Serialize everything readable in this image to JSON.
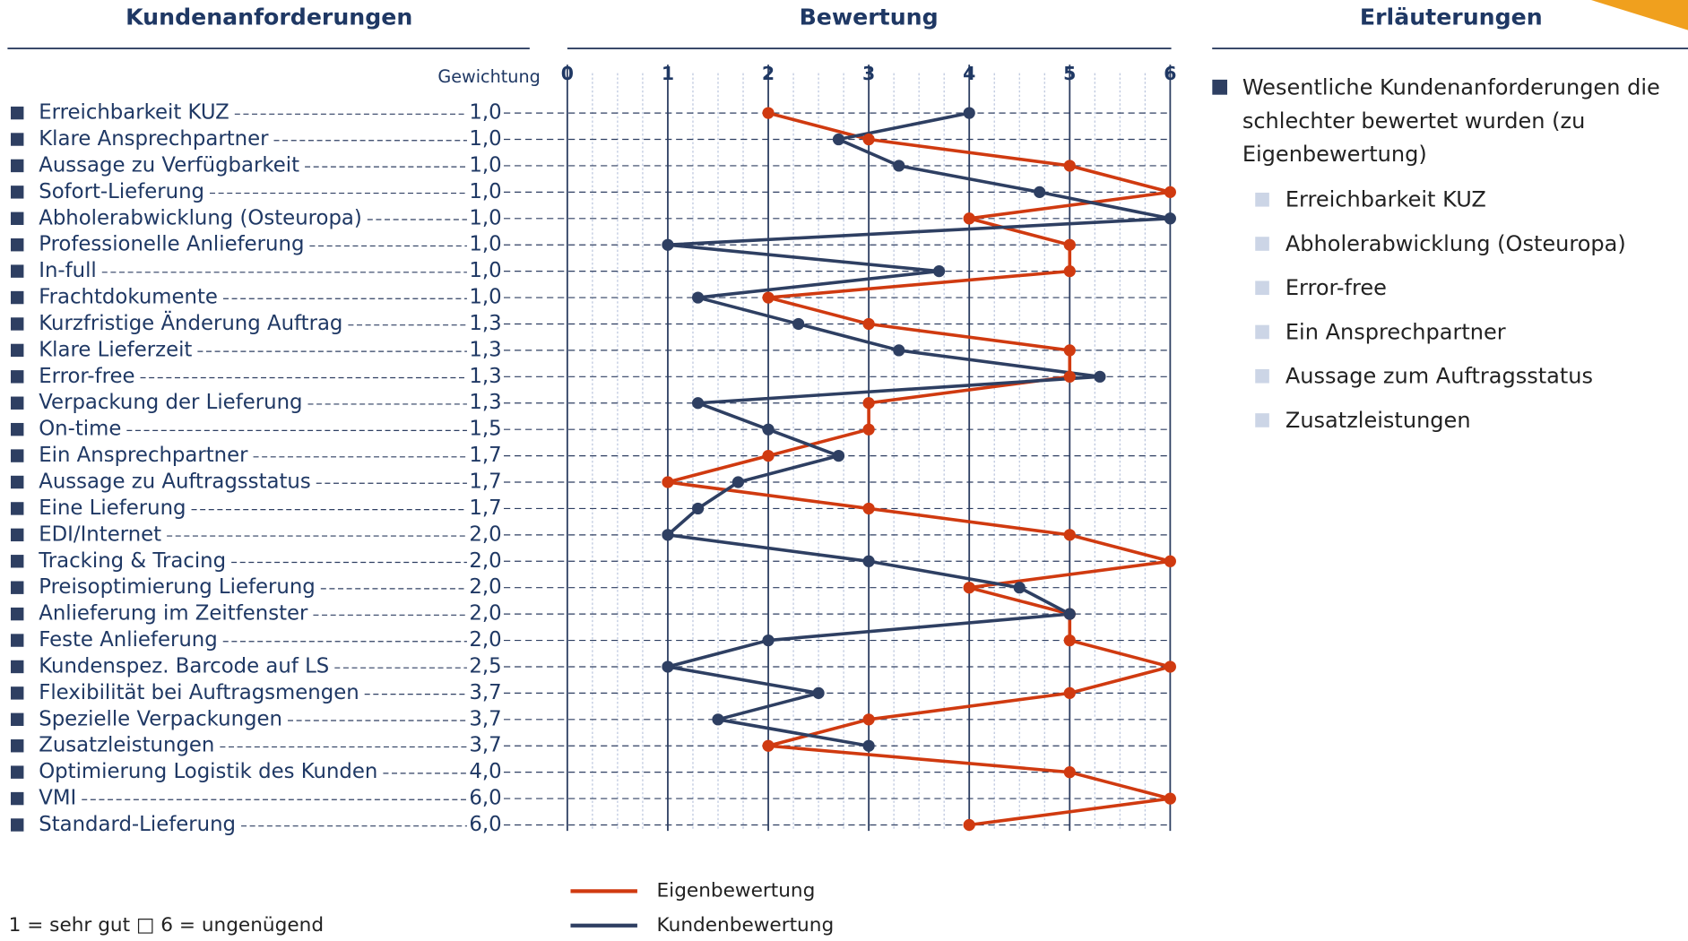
{
  "header": {
    "left": "Kundenanforderungen",
    "middle": "Bewertung",
    "right": "Erläuterungen"
  },
  "chart_data": {
    "type": "line",
    "weight_label": "Gewichtung",
    "categories": [
      "Erreichbarkeit KUZ",
      "Klare Ansprechpartner",
      "Aussage zu Verfügbarkeit",
      "Sofort-Lieferung",
      "Abholerabwicklung (Osteuropa)",
      "Professionelle Anlieferung",
      "In-full",
      "Frachtdokumente",
      "Kurzfristige Änderung Auftrag",
      "Klare Lieferzeit",
      "Error-free",
      "Verpackung der Lieferung",
      "On-time",
      "Ein Ansprechpartner",
      "Aussage zu Auftragsstatus",
      "Eine Lieferung",
      "EDI/Internet",
      "Tracking & Tracing",
      "Preisoptimierung Lieferung",
      "Anlieferung im Zeitfenster",
      "Feste Anlieferung",
      "Kundenspez. Barcode auf LS",
      "Flexibilität bei Auftragsmengen",
      "Spezielle Verpackungen",
      "Zusatzleistungen",
      "Optimierung Logistik des Kunden",
      "VMI",
      "Standard-Lieferung"
    ],
    "weights": [
      "1,0",
      "1,0",
      "1,0",
      "1,0",
      "1,0",
      "1,0",
      "1,0",
      "1,0",
      "1,3",
      "1,3",
      "1,3",
      "1,3",
      "1,5",
      "1,7",
      "1,7",
      "1,7",
      "2,0",
      "2,0",
      "2,0",
      "2,0",
      "2,0",
      "2,5",
      "3,7",
      "3,7",
      "3,7",
      "4,0",
      "6,0",
      "6,0"
    ],
    "series": [
      {
        "name": "Eigenbewertung",
        "color": "#d03a10",
        "values": [
          2,
          3,
          5,
          6,
          4,
          5,
          5,
          2,
          3,
          5,
          5,
          3,
          3,
          2,
          1,
          3,
          5,
          6,
          4,
          5,
          5,
          6,
          5,
          3,
          2,
          5,
          6,
          4
        ]
      },
      {
        "name": "Kundenbewertung",
        "color": "#2e3f62",
        "values": [
          4,
          2.7,
          3.3,
          4.7,
          6,
          1,
          3.7,
          1.3,
          2.3,
          3.3,
          5.3,
          1.3,
          2,
          2.7,
          1.7,
          1.3,
          1,
          3,
          4.5,
          5,
          2,
          1,
          2.5,
          1.5,
          3,
          null,
          null,
          null
        ]
      }
    ],
    "xlim": [
      0,
      6
    ],
    "xticks": [
      0,
      1,
      2,
      3,
      4,
      5,
      6
    ],
    "grid": true
  },
  "notes": {
    "lead": "Wesentliche Kundenanforderungen die schlechter bewertet wurden (zu Eigenbewertung)",
    "items": [
      "Erreichbarkeit KUZ",
      "Abholerabwicklung (Osteuropa)",
      "Error-free",
      "Ein Ansprechpartner",
      "Aussage zum Auftragsstatus",
      "Zusatzleistungen"
    ]
  },
  "footnote": "1 = sehr gut □ 6 = ungenügend"
}
